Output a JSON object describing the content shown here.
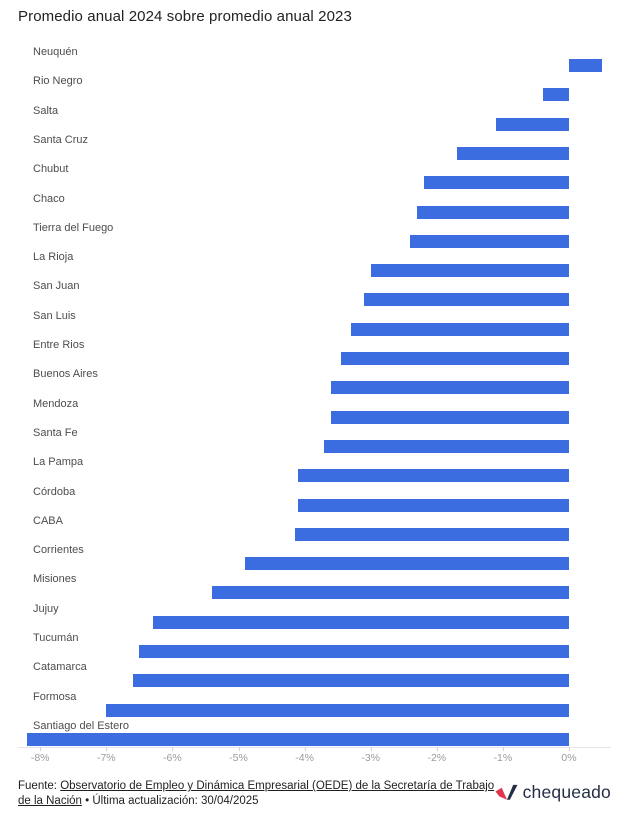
{
  "title": "Promedio anual 2024 sobre promedio anual 2023",
  "chart_data": {
    "type": "bar",
    "orientation": "horizontal",
    "title": "Promedio anual 2024 sobre promedio anual 2023",
    "unit": "%",
    "categories": [
      "Neuquén",
      "Rio Negro",
      "Salta",
      "Santa Cruz",
      "Chubut",
      "Chaco",
      "Tierra del Fuego",
      "La Rioja",
      "San Juan",
      "San Luis",
      "Entre Rios",
      "Buenos Aires",
      "Mendoza",
      "Santa Fe",
      "La Pampa",
      "Córdoba",
      "CABA",
      "Corrientes",
      "Misiones",
      "Jujuy",
      "Tucumán",
      "Catamarca",
      "Formosa",
      "Santiago del Estero"
    ],
    "values": [
      0.5,
      -0.4,
      -1.1,
      -1.7,
      -2.2,
      -2.3,
      -2.4,
      -3.0,
      -3.1,
      -3.3,
      -3.45,
      -3.6,
      -3.6,
      -3.7,
      -4.1,
      -4.1,
      -4.15,
      -4.9,
      -5.4,
      -6.3,
      -6.5,
      -6.6,
      -7.0,
      -8.2
    ],
    "x_ticks": [
      {
        "label": "-8%",
        "value": -8
      },
      {
        "label": "-7%",
        "value": -7
      },
      {
        "label": "-6%",
        "value": -6
      },
      {
        "label": "-5%",
        "value": -5
      },
      {
        "label": "-4%",
        "value": -4
      },
      {
        "label": "-3%",
        "value": -3
      },
      {
        "label": "-2%",
        "value": -2
      },
      {
        "label": "-1%",
        "value": -1
      },
      {
        "label": "0%",
        "value": 0
      }
    ],
    "xlim": [
      -8.6,
      0.85
    ],
    "grid": false,
    "legend": "none",
    "bar_color": "#3c6de0",
    "axis_line_color": "#e6e6e6",
    "tick_label_color": "#9b9b9b"
  },
  "footer": {
    "prefix": "Fuente: ",
    "link_text": "Observatorio de Empleo y Dinámica Empresarial (OEDE) de la Secretaría de Trabajo de la Nación",
    "suffix": " • Última actualización: 30/04/2025"
  },
  "logo": {
    "text": "chequeado",
    "check_red": "#e1354b",
    "check_dark": "#252e45",
    "text_color": "#252e45"
  }
}
